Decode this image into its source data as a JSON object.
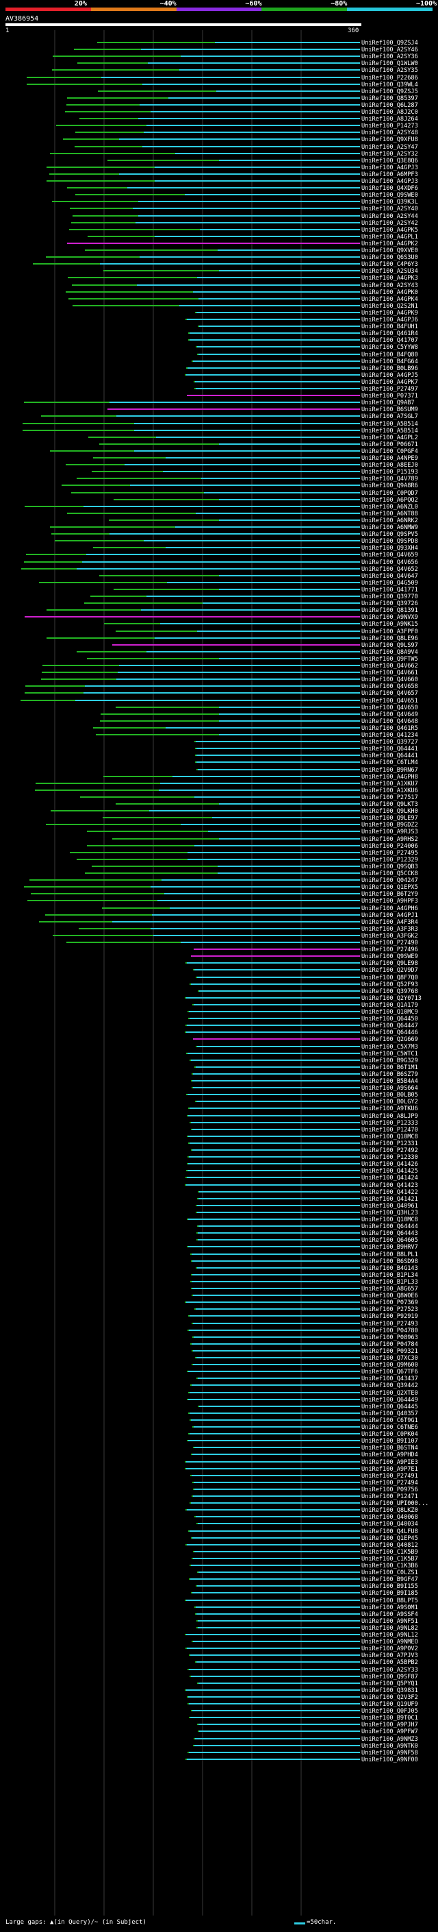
{
  "legend": [
    {
      "label": "20%",
      "color": "#e5202a"
    },
    {
      "label": "~40%",
      "color": "#e07a1a"
    },
    {
      "label": "~60%",
      "color": "#8a2be2"
    },
    {
      "label": "~80%",
      "color": "#1ea51e"
    },
    {
      "label": "~100%",
      "color": "#26c6da"
    }
  ],
  "query": {
    "id": "AV386954",
    "start": "1",
    "end": "360"
  },
  "footer": {
    "gaps": "Large gaps: ▲(in Query)/~ (in Subject)",
    "scale": "=50char."
  },
  "colors": {
    "green": "#22b422",
    "cyan": "#2ecfe5",
    "magenta": "#d020d0",
    "gridline": "#3a3a3a"
  },
  "hits": [
    "UniRef100_Q9ZSJ4",
    "UniRef100_A2SY46",
    "UniRef100_A2SY36",
    "UniRef100_Q1WLW0",
    "UniRef100_A2SY35",
    "UniRef100_P22686",
    "UniRef100_Q39WL4",
    "UniRef100_Q9ZSJ5",
    "UniRef100_Q85397",
    "UniRef100_Q6L287",
    "UniRef100_A8J2C0",
    "UniRef100_A8J264",
    "UniRef100_P14273",
    "UniRef100_A2SY48",
    "UniRef100_Q9XFU8",
    "UniRef100_A2SY47",
    "UniRef100_A2SY32",
    "UniRef100_Q3E8Q6",
    "UniRef100_A4GPJ3",
    "UniRef100_A6MPF3",
    "UniRef100_A4GPJ3",
    "UniRef100_Q4XDF6",
    "UniRef100_Q9SWE0",
    "UniRef100_Q39K3L",
    "UniRef100_A2SY40",
    "UniRef100_A2SY44",
    "UniRef100_A2SY42",
    "UniRef100_A4GPK5",
    "UniRef100_A4GPL1",
    "UniRef100_A4GPK2",
    "UniRef100_Q9XVE0",
    "UniRef100_Q6S3U0",
    "UniRef100_C4P6Y3",
    "UniRef100_A2SU34",
    "UniRef100_A4GPK3",
    "UniRef100_A2SY43",
    "UniRef100_A4GPK0",
    "UniRef100_A4GPK4",
    "UniRef100_Q2S2N1",
    "UniRef100_A4GPK9",
    "UniRef100_A4GPJ6",
    "UniRef100_B4FUH1",
    "UniRef100_Q461R4",
    "UniRef100_Q41707",
    "UniRef100_C5YYW8",
    "UniRef100_B4FQ80",
    "UniRef100_B4FG64",
    "UniRef100_B0LB96",
    "UniRef100_A4GPJ5",
    "UniRef100_A4GPK7",
    "UniRef100_P27497",
    "UniRef100_P07371",
    "UniRef100_Q9AB7",
    "UniRef100_B6SUM9",
    "UniRef100_A7SGL7",
    "UniRef100_A5B514",
    "UniRef100_A5B514",
    "UniRef100_A4GPL2",
    "UniRef100_P06671",
    "UniRef100_C0PGF4",
    "UniRef100_A4NPE9",
    "UniRef100_A8EEJ0",
    "UniRef100_P15193",
    "UniRef100_Q4V789",
    "UniRef100_Q9A8R6",
    "UniRef100_C0PQD7",
    "UniRef100_A6PQQ2",
    "UniRef100_A6NZL0",
    "UniRef100_A6NT88",
    "UniRef100_A6NRK2",
    "UniRef100_A6NMW9",
    "UniRef100_Q9SPV5",
    "UniRef100_Q9SPD8",
    "UniRef100_Q93XH4",
    "UniRef100_Q4V659",
    "UniRef100_Q4V656",
    "UniRef100_Q4V652",
    "UniRef100_Q4V647",
    "UniRef100_Q4G509",
    "UniRef100_Q41771",
    "UniRef100_Q39770",
    "UniRef100_Q39726",
    "UniRef100_Q81391",
    "UniRef100_A9NVX9",
    "UniRef100_A9NK15",
    "UniRef100_A3FPF0",
    "UniRef100_Q8LE96",
    "UniRef100_Q9LS97",
    "UniRef100_Q8A9V4",
    "UniRef100_Q9FTW5",
    "UniRef100_Q4V662",
    "UniRef100_Q4V661",
    "UniRef100_Q4V660",
    "UniRef100_Q4V658",
    "UniRef100_Q4V657",
    "UniRef100_Q4V651",
    "UniRef100_Q4V650",
    "UniRef100_Q4V649",
    "UniRef100_Q4V648",
    "UniRef100_Q461R5",
    "UniRef100_Q41234",
    "UniRef100_Q39727",
    "UniRef100_Q64441",
    "UniRef100_Q64441",
    "UniRef100_C6TLM4",
    "UniRef100_B9RN67",
    "UniRef100_A4GPH8",
    "UniRef100_A1XKU7",
    "UniRef100_A1XKU6",
    "UniRef100_P27517",
    "UniRef100_Q9LKT3",
    "UniRef100_Q9LKH0",
    "UniRef100_Q9LE97",
    "UniRef100_B9GDZ2",
    "UniRef100_A9RJS3",
    "UniRef100_A9RHS2",
    "UniRef100_P24006",
    "UniRef100_P27495",
    "UniRef100_P12329",
    "UniRef100_Q9SQB3",
    "UniRef100_Q5CCK8",
    "UniRef100_Q04247",
    "UniRef100_Q1EPX5",
    "UniRef100_B6T2Y9",
    "UniRef100_A9HPF3",
    "UniRef100_A4GPH6",
    "UniRef100_A4GPJ1",
    "UniRef100_A4F3R4",
    "UniRef100_A3F3R3",
    "UniRef100_A3FGK2",
    "UniRef100_P27490",
    "UniRef100_P27496",
    "UniRef100_Q9SWE9",
    "UniRef100_Q9LE98",
    "UniRef100_Q2V9D7",
    "UniRef100_Q8F7Q0",
    "UniRef100_Q52F93",
    "UniRef100_Q39768",
    "UniRef100_Q2Y0713",
    "UniRef100_Q1A179",
    "UniRef100_Q10MC9",
    "UniRef100_Q64450",
    "UniRef100_Q64447",
    "UniRef100_Q64446",
    "UniRef100_Q2G669",
    "UniRef100_C5X7M3",
    "UniRef100_C5WTC1",
    "UniRef100_B9G329",
    "UniRef100_B6T1M1",
    "UniRef100_B6SZ79",
    "UniRef100_B5B4A4",
    "UniRef100_A9S664",
    "UniRef100_B0LB05",
    "UniRef100_B0LGY2",
    "UniRef100_A9TKU6",
    "UniRef100_A8LJP9",
    "UniRef100_P12333",
    "UniRef100_P12470",
    "UniRef100_Q10MC8",
    "UniRef100_P12331",
    "UniRef100_P27492",
    "UniRef100_P12330",
    "UniRef100_Q41426",
    "UniRef100_Q41425",
    "UniRef100_Q41424",
    "UniRef100_Q41423",
    "UniRef100_Q41422",
    "UniRef100_Q41421",
    "UniRef100_Q40961",
    "UniRef100_Q3HL23",
    "UniRef100_Q10MC8",
    "UniRef100_Q64444",
    "UniRef100_Q64443",
    "UniRef100_Q64605",
    "UniRef100_B9HRV7",
    "UniRef100_B8LPL1",
    "UniRef100_B6SD98",
    "UniRef100_B4G143",
    "UniRef100_B1PL34",
    "UniRef100_B1PL33",
    "UniRef100_A8G657",
    "UniRef100_Q8W0E6",
    "UniRef100_P07369",
    "UniRef100_P27523",
    "UniRef100_P92919",
    "UniRef100_P27493",
    "UniRef100_P04780",
    "UniRef100_P08963",
    "UniRef100_P04784",
    "UniRef100_P09321",
    "UniRef100_Q7XC30",
    "UniRef100_Q9M600",
    "UniRef100_Q67TF6",
    "UniRef100_Q43437",
    "UniRef100_Q39442",
    "UniRef100_Q2XTE0",
    "UniRef100_Q64449",
    "UniRef100_Q64445",
    "UniRef100_Q40357",
    "UniRef100_C6T9G1",
    "UniRef100_C6TNE6",
    "UniRef100_C0PK04",
    "UniRef100_B9I107",
    "UniRef100_B6STN4",
    "UniRef100_A9PHD4",
    "UniRef100_A9PIE3",
    "UniRef100_A9P7E1",
    "UniRef100_P27491",
    "UniRef100_P27494",
    "UniRef100_P09756",
    "UniRef100_P12471",
    "UniRef100_UPI000...",
    "UniRef100_Q8LKZ0",
    "UniRef100_Q40068",
    "UniRef100_Q40034",
    "UniRef100_Q4LFU8",
    "UniRef100_Q1EP45",
    "UniRef100_Q40812",
    "UniRef100_C1K5B9",
    "UniRef100_C1K5B7",
    "UniRef100_C1K3B6",
    "UniRef100_C0LZS1",
    "UniRef100_B9GF47",
    "UniRef100_B9I155",
    "UniRef100_B9I185",
    "UniRef100_B8LPT5",
    "UniRef100_A9S0M1",
    "UniRef100_A9SSF4",
    "UniRef100_A9NF51",
    "UniRef100_A9NL82",
    "UniRef100_A9NL12",
    "UniRef100_A9NMEO",
    "UniRef100_A9P0V2",
    "UniRef100_A7PJV3",
    "UniRef100_A5BPB2",
    "UniRef100_A2SY33",
    "UniRef100_Q9SF87",
    "UniRef100_Q5PYQ1",
    "UniRef100_Q39831",
    "UniRef100_Q2V3F2",
    "UniRef100_Q19UF9",
    "UniRef100_Q0FJ05",
    "UniRef100_B9T0C1",
    "UniRef100_A9PJH7",
    "UniRef100_A9PFW7",
    "UniRef100_A9NMZ3",
    "UniRef100_A9NTK0",
    "UniRef100_A9NF58",
    "UniRef100_A9NF00"
  ]
}
